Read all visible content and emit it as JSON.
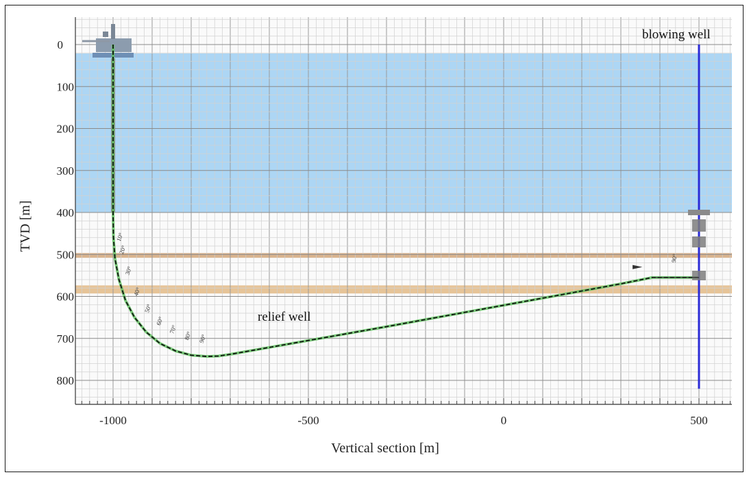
{
  "chart_data": {
    "type": "line",
    "title": "",
    "xlabel": "Vertical section [m]",
    "ylabel": "TVD [m]",
    "xlim": [
      -1100,
      600
    ],
    "ylim": [
      -90,
      850
    ],
    "x_ticks": [
      -1000,
      -500,
      0,
      500
    ],
    "y_ticks": [
      0,
      100,
      200,
      300,
      400,
      500,
      600,
      700,
      800
    ],
    "grid": true,
    "water_layer": {
      "top": 0,
      "bottom": 400,
      "color": "#a9d4f3"
    },
    "formation_bands": [
      {
        "top": 500,
        "bottom": 508,
        "color": "#d9b48f"
      },
      {
        "top": 577,
        "bottom": 593,
        "color": "#e6c498"
      }
    ],
    "series": [
      {
        "name": "relief well",
        "color": "#111111",
        "overlay_color": "#5cc25c",
        "x": [
          -1000,
          -1000,
          -999,
          -995,
          -985,
          -968,
          -945,
          -915,
          -880,
          -840,
          -800,
          -760,
          -730,
          -700,
          -500,
          -300,
          -100,
          100,
          300,
          380,
          500
        ],
        "y": [
          0,
          400,
          460,
          510,
          560,
          610,
          650,
          685,
          712,
          730,
          740,
          743,
          742,
          738,
          705,
          672,
          638,
          604,
          570,
          555,
          555
        ]
      },
      {
        "name": "blowing well",
        "color": "#2b2bd6",
        "x": [
          500,
          500
        ],
        "y": [
          0,
          820
        ]
      }
    ],
    "inclination_labels": [
      "10°",
      "20°",
      "30°",
      "40°",
      "50°",
      "60°",
      "70°",
      "80°",
      "90°"
    ],
    "target_label": "90°",
    "annotations": [
      "relief well",
      "blowing well"
    ]
  }
}
